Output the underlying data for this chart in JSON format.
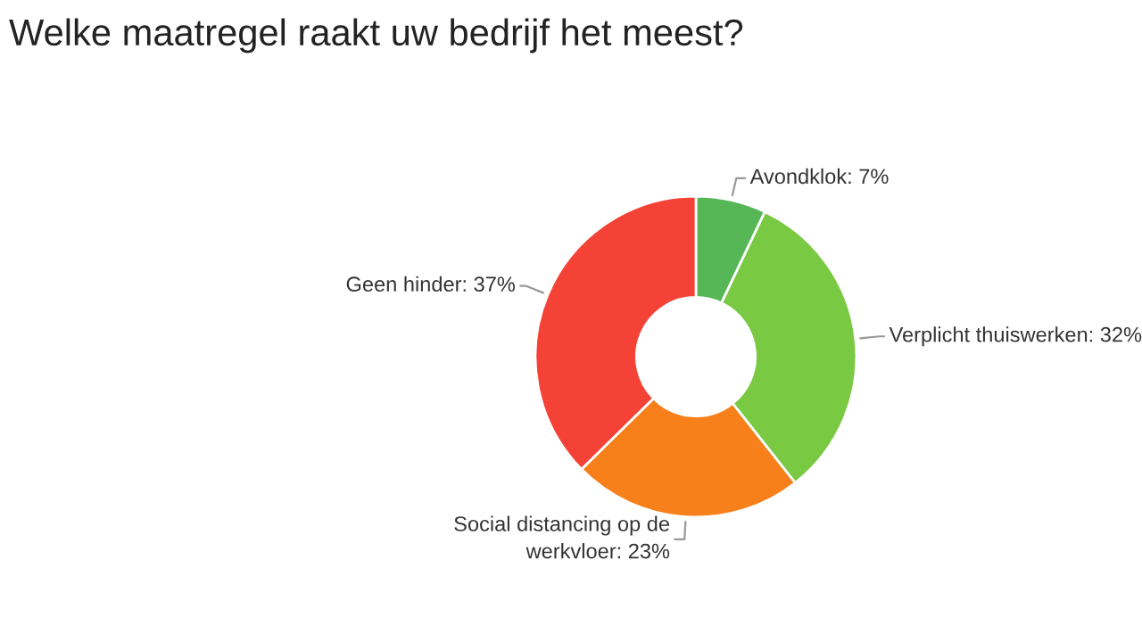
{
  "chart_data": {
    "type": "donut",
    "title": "Welke maatregel raakt uw bedrijf het meest?",
    "categories": [
      "Avondklok",
      "Verplicht thuiswerken",
      "Social distancing op de werkvloer",
      "Geen hinder"
    ],
    "values": [
      7,
      32,
      23,
      37
    ],
    "value_labels": [
      "7%",
      "32%",
      "23%",
      "37%"
    ],
    "colors": [
      "#57b757",
      "#7ac943",
      "#f7801a",
      "#f44336"
    ]
  }
}
